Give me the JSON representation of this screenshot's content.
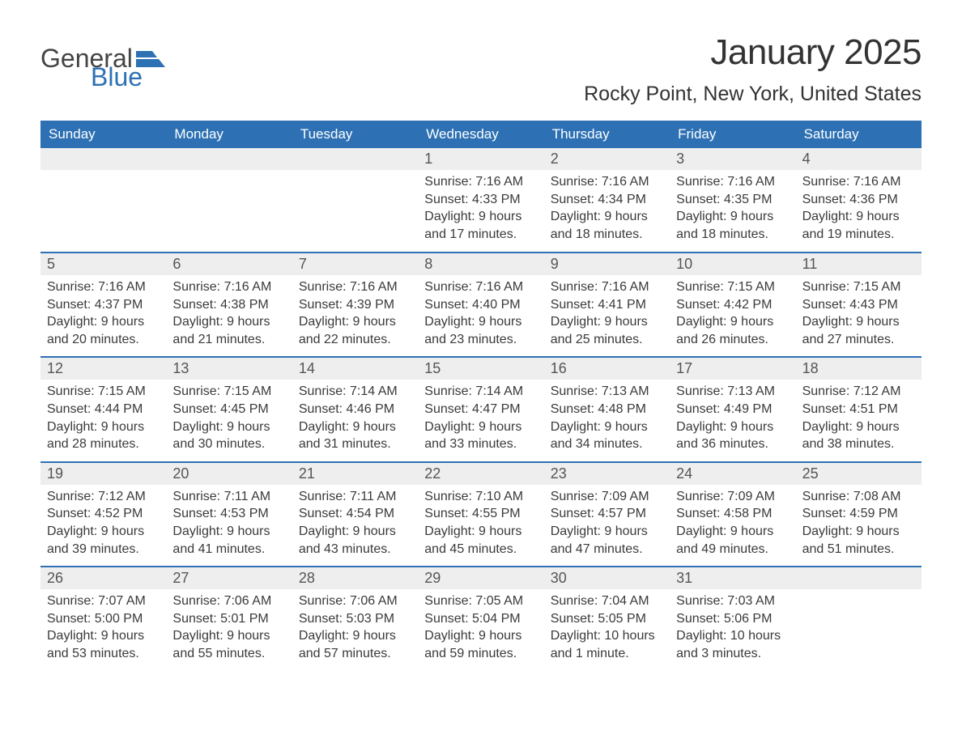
{
  "brand": {
    "part1": "General",
    "part2": "Blue",
    "logo_color": "#2d71b4"
  },
  "colors": {
    "header_bg": "#2d71b4",
    "header_text": "#ffffff",
    "daynum_bg": "#eeeeee",
    "rule": "#2d71b4",
    "body_text": "#3a3a3a"
  },
  "title": "January 2025",
  "location": "Rocky Point, New York, United States",
  "dow": [
    "Sunday",
    "Monday",
    "Tuesday",
    "Wednesday",
    "Thursday",
    "Friday",
    "Saturday"
  ],
  "weeks": [
    [
      null,
      null,
      null,
      {
        "n": "1",
        "sunrise": "Sunrise: 7:16 AM",
        "sunset": "Sunset: 4:33 PM",
        "daylight": "Daylight: 9 hours and 17 minutes."
      },
      {
        "n": "2",
        "sunrise": "Sunrise: 7:16 AM",
        "sunset": "Sunset: 4:34 PM",
        "daylight": "Daylight: 9 hours and 18 minutes."
      },
      {
        "n": "3",
        "sunrise": "Sunrise: 7:16 AM",
        "sunset": "Sunset: 4:35 PM",
        "daylight": "Daylight: 9 hours and 18 minutes."
      },
      {
        "n": "4",
        "sunrise": "Sunrise: 7:16 AM",
        "sunset": "Sunset: 4:36 PM",
        "daylight": "Daylight: 9 hours and 19 minutes."
      }
    ],
    [
      {
        "n": "5",
        "sunrise": "Sunrise: 7:16 AM",
        "sunset": "Sunset: 4:37 PM",
        "daylight": "Daylight: 9 hours and 20 minutes."
      },
      {
        "n": "6",
        "sunrise": "Sunrise: 7:16 AM",
        "sunset": "Sunset: 4:38 PM",
        "daylight": "Daylight: 9 hours and 21 minutes."
      },
      {
        "n": "7",
        "sunrise": "Sunrise: 7:16 AM",
        "sunset": "Sunset: 4:39 PM",
        "daylight": "Daylight: 9 hours and 22 minutes."
      },
      {
        "n": "8",
        "sunrise": "Sunrise: 7:16 AM",
        "sunset": "Sunset: 4:40 PM",
        "daylight": "Daylight: 9 hours and 23 minutes."
      },
      {
        "n": "9",
        "sunrise": "Sunrise: 7:16 AM",
        "sunset": "Sunset: 4:41 PM",
        "daylight": "Daylight: 9 hours and 25 minutes."
      },
      {
        "n": "10",
        "sunrise": "Sunrise: 7:15 AM",
        "sunset": "Sunset: 4:42 PM",
        "daylight": "Daylight: 9 hours and 26 minutes."
      },
      {
        "n": "11",
        "sunrise": "Sunrise: 7:15 AM",
        "sunset": "Sunset: 4:43 PM",
        "daylight": "Daylight: 9 hours and 27 minutes."
      }
    ],
    [
      {
        "n": "12",
        "sunrise": "Sunrise: 7:15 AM",
        "sunset": "Sunset: 4:44 PM",
        "daylight": "Daylight: 9 hours and 28 minutes."
      },
      {
        "n": "13",
        "sunrise": "Sunrise: 7:15 AM",
        "sunset": "Sunset: 4:45 PM",
        "daylight": "Daylight: 9 hours and 30 minutes."
      },
      {
        "n": "14",
        "sunrise": "Sunrise: 7:14 AM",
        "sunset": "Sunset: 4:46 PM",
        "daylight": "Daylight: 9 hours and 31 minutes."
      },
      {
        "n": "15",
        "sunrise": "Sunrise: 7:14 AM",
        "sunset": "Sunset: 4:47 PM",
        "daylight": "Daylight: 9 hours and 33 minutes."
      },
      {
        "n": "16",
        "sunrise": "Sunrise: 7:13 AM",
        "sunset": "Sunset: 4:48 PM",
        "daylight": "Daylight: 9 hours and 34 minutes."
      },
      {
        "n": "17",
        "sunrise": "Sunrise: 7:13 AM",
        "sunset": "Sunset: 4:49 PM",
        "daylight": "Daylight: 9 hours and 36 minutes."
      },
      {
        "n": "18",
        "sunrise": "Sunrise: 7:12 AM",
        "sunset": "Sunset: 4:51 PM",
        "daylight": "Daylight: 9 hours and 38 minutes."
      }
    ],
    [
      {
        "n": "19",
        "sunrise": "Sunrise: 7:12 AM",
        "sunset": "Sunset: 4:52 PM",
        "daylight": "Daylight: 9 hours and 39 minutes."
      },
      {
        "n": "20",
        "sunrise": "Sunrise: 7:11 AM",
        "sunset": "Sunset: 4:53 PM",
        "daylight": "Daylight: 9 hours and 41 minutes."
      },
      {
        "n": "21",
        "sunrise": "Sunrise: 7:11 AM",
        "sunset": "Sunset: 4:54 PM",
        "daylight": "Daylight: 9 hours and 43 minutes."
      },
      {
        "n": "22",
        "sunrise": "Sunrise: 7:10 AM",
        "sunset": "Sunset: 4:55 PM",
        "daylight": "Daylight: 9 hours and 45 minutes."
      },
      {
        "n": "23",
        "sunrise": "Sunrise: 7:09 AM",
        "sunset": "Sunset: 4:57 PM",
        "daylight": "Daylight: 9 hours and 47 minutes."
      },
      {
        "n": "24",
        "sunrise": "Sunrise: 7:09 AM",
        "sunset": "Sunset: 4:58 PM",
        "daylight": "Daylight: 9 hours and 49 minutes."
      },
      {
        "n": "25",
        "sunrise": "Sunrise: 7:08 AM",
        "sunset": "Sunset: 4:59 PM",
        "daylight": "Daylight: 9 hours and 51 minutes."
      }
    ],
    [
      {
        "n": "26",
        "sunrise": "Sunrise: 7:07 AM",
        "sunset": "Sunset: 5:00 PM",
        "daylight": "Daylight: 9 hours and 53 minutes."
      },
      {
        "n": "27",
        "sunrise": "Sunrise: 7:06 AM",
        "sunset": "Sunset: 5:01 PM",
        "daylight": "Daylight: 9 hours and 55 minutes."
      },
      {
        "n": "28",
        "sunrise": "Sunrise: 7:06 AM",
        "sunset": "Sunset: 5:03 PM",
        "daylight": "Daylight: 9 hours and 57 minutes."
      },
      {
        "n": "29",
        "sunrise": "Sunrise: 7:05 AM",
        "sunset": "Sunset: 5:04 PM",
        "daylight": "Daylight: 9 hours and 59 minutes."
      },
      {
        "n": "30",
        "sunrise": "Sunrise: 7:04 AM",
        "sunset": "Sunset: 5:05 PM",
        "daylight": "Daylight: 10 hours and 1 minute."
      },
      {
        "n": "31",
        "sunrise": "Sunrise: 7:03 AM",
        "sunset": "Sunset: 5:06 PM",
        "daylight": "Daylight: 10 hours and 3 minutes."
      },
      null
    ]
  ]
}
